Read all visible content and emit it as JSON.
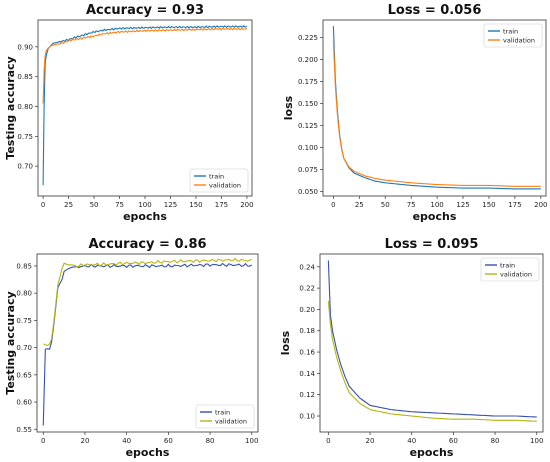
{
  "chart_data": [
    {
      "type": "line",
      "title": "Accuracy = 0.93",
      "xlabel": "epochs",
      "ylabel": "Testing accuracy",
      "xlim": [
        -5,
        205
      ],
      "ylim": [
        0.65,
        0.945
      ],
      "xticks": [
        0,
        25,
        50,
        75,
        100,
        125,
        150,
        175,
        200
      ],
      "yticks": [
        0.7,
        0.75,
        0.8,
        0.85,
        0.9
      ],
      "ytick_labels": [
        "0.70",
        "0.75",
        "0.80",
        "0.85",
        "0.90"
      ],
      "legend_position": "lower-right",
      "noise": 0.0015,
      "series": [
        {
          "name": "train",
          "color": "#1f77b4",
          "x": [
            0,
            1,
            2,
            3,
            5,
            8,
            10,
            15,
            20,
            25,
            30,
            40,
            50,
            60,
            75,
            100,
            125,
            150,
            175,
            200
          ],
          "y": [
            0.668,
            0.8,
            0.87,
            0.885,
            0.897,
            0.903,
            0.906,
            0.908,
            0.91,
            0.912,
            0.915,
            0.92,
            0.925,
            0.928,
            0.931,
            0.932,
            0.933,
            0.933,
            0.934,
            0.934
          ]
        },
        {
          "name": "validation",
          "color": "#ff7f0e",
          "x": [
            0,
            1,
            2,
            3,
            5,
            8,
            10,
            15,
            20,
            25,
            30,
            40,
            50,
            60,
            75,
            100,
            125,
            150,
            175,
            200
          ],
          "y": [
            0.805,
            0.86,
            0.885,
            0.893,
            0.898,
            0.902,
            0.903,
            0.905,
            0.907,
            0.91,
            0.912,
            0.915,
            0.918,
            0.922,
            0.925,
            0.927,
            0.928,
            0.929,
            0.93,
            0.93
          ]
        }
      ]
    },
    {
      "type": "line",
      "title": "Loss = 0.056",
      "xlabel": "epochs",
      "ylabel": "loss",
      "xlim": [
        -10,
        205
      ],
      "ylim": [
        0.045,
        0.245
      ],
      "xticks": [
        0,
        25,
        50,
        75,
        100,
        125,
        150,
        175,
        200
      ],
      "yticks": [
        0.05,
        0.075,
        0.1,
        0.125,
        0.15,
        0.175,
        0.2,
        0.225
      ],
      "ytick_labels": [
        "0.050",
        "0.075",
        "0.100",
        "0.125",
        "0.150",
        "0.175",
        "0.200",
        "0.225"
      ],
      "legend_position": "top-right",
      "noise": 0,
      "series": [
        {
          "name": "train",
          "color": "#1f77b4",
          "x": [
            0,
            2,
            4,
            6,
            8,
            10,
            15,
            20,
            30,
            40,
            50,
            75,
            100,
            125,
            150,
            175,
            200
          ],
          "y": [
            0.238,
            0.175,
            0.14,
            0.115,
            0.099,
            0.088,
            0.077,
            0.071,
            0.066,
            0.062,
            0.06,
            0.057,
            0.055,
            0.054,
            0.054,
            0.053,
            0.053
          ]
        },
        {
          "name": "validation",
          "color": "#ff7f0e",
          "x": [
            0,
            2,
            4,
            6,
            8,
            10,
            15,
            20,
            30,
            40,
            50,
            75,
            100,
            125,
            150,
            175,
            200
          ],
          "y": [
            0.222,
            0.168,
            0.136,
            0.113,
            0.098,
            0.088,
            0.078,
            0.073,
            0.068,
            0.065,
            0.063,
            0.06,
            0.058,
            0.057,
            0.057,
            0.056,
            0.056
          ]
        }
      ]
    },
    {
      "type": "line",
      "title": "Accuracy = 0.86",
      "xlabel": "epochs",
      "ylabel": "Testing accuracy",
      "xlim": [
        -3,
        103
      ],
      "ylim": [
        0.545,
        0.872
      ],
      "xticks": [
        0,
        20,
        40,
        60,
        80,
        100
      ],
      "yticks": [
        0.55,
        0.6,
        0.65,
        0.7,
        0.75,
        0.8,
        0.85
      ],
      "ytick_labels": [
        "0.55",
        "0.60",
        "0.65",
        "0.70",
        "0.75",
        "0.80",
        "0.85"
      ],
      "legend_position": "lower-right",
      "noise": 0.003,
      "series": [
        {
          "name": "train",
          "color": "#3750b0",
          "x": [
            0,
            1,
            2,
            3,
            4,
            5,
            6,
            7,
            8,
            9,
            10,
            12,
            14,
            16,
            20,
            30,
            40,
            50,
            60,
            70,
            80,
            90,
            100
          ],
          "y": [
            0.557,
            0.697,
            0.698,
            0.697,
            0.71,
            0.74,
            0.775,
            0.81,
            0.818,
            0.825,
            0.84,
            0.845,
            0.848,
            0.848,
            0.85,
            0.85,
            0.85,
            0.85,
            0.85,
            0.851,
            0.852,
            0.852,
            0.851
          ]
        },
        {
          "name": "validation",
          "color": "#b5b512",
          "x": [
            0,
            1,
            2,
            3,
            4,
            5,
            6,
            7,
            8,
            9,
            10,
            12,
            14,
            16,
            20,
            30,
            40,
            50,
            60,
            70,
            80,
            90,
            100
          ],
          "y": [
            0.707,
            0.705,
            0.704,
            0.706,
            0.716,
            0.745,
            0.78,
            0.815,
            0.83,
            0.845,
            0.855,
            0.852,
            0.852,
            0.85,
            0.852,
            0.853,
            0.855,
            0.856,
            0.858,
            0.859,
            0.86,
            0.861,
            0.86
          ]
        }
      ]
    },
    {
      "type": "line",
      "title": "Loss = 0.095",
      "xlabel": "epochs",
      "ylabel": "loss",
      "xlim": [
        -4,
        103
      ],
      "ylim": [
        0.085,
        0.252
      ],
      "xticks": [
        0,
        20,
        40,
        60,
        80,
        100
      ],
      "yticks": [
        0.1,
        0.12,
        0.14,
        0.16,
        0.18,
        0.2,
        0.22,
        0.24
      ],
      "ytick_labels": [
        "0.10",
        "0.12",
        "0.14",
        "0.16",
        "0.18",
        "0.20",
        "0.22",
        "0.24"
      ],
      "legend_position": "top-right",
      "noise": 0,
      "series": [
        {
          "name": "train",
          "color": "#3750b0",
          "x": [
            0,
            1,
            2,
            4,
            6,
            8,
            10,
            15,
            20,
            30,
            40,
            50,
            60,
            70,
            80,
            90,
            100
          ],
          "y": [
            0.246,
            0.195,
            0.18,
            0.162,
            0.148,
            0.137,
            0.128,
            0.117,
            0.11,
            0.106,
            0.104,
            0.103,
            0.102,
            0.101,
            0.1,
            0.1,
            0.099
          ]
        },
        {
          "name": "validation",
          "color": "#b5b512",
          "x": [
            0,
            1,
            2,
            4,
            6,
            8,
            10,
            15,
            20,
            30,
            40,
            50,
            60,
            70,
            80,
            90,
            100
          ],
          "y": [
            0.208,
            0.186,
            0.172,
            0.155,
            0.142,
            0.131,
            0.122,
            0.112,
            0.106,
            0.102,
            0.1,
            0.098,
            0.097,
            0.097,
            0.096,
            0.096,
            0.095
          ]
        }
      ]
    }
  ]
}
